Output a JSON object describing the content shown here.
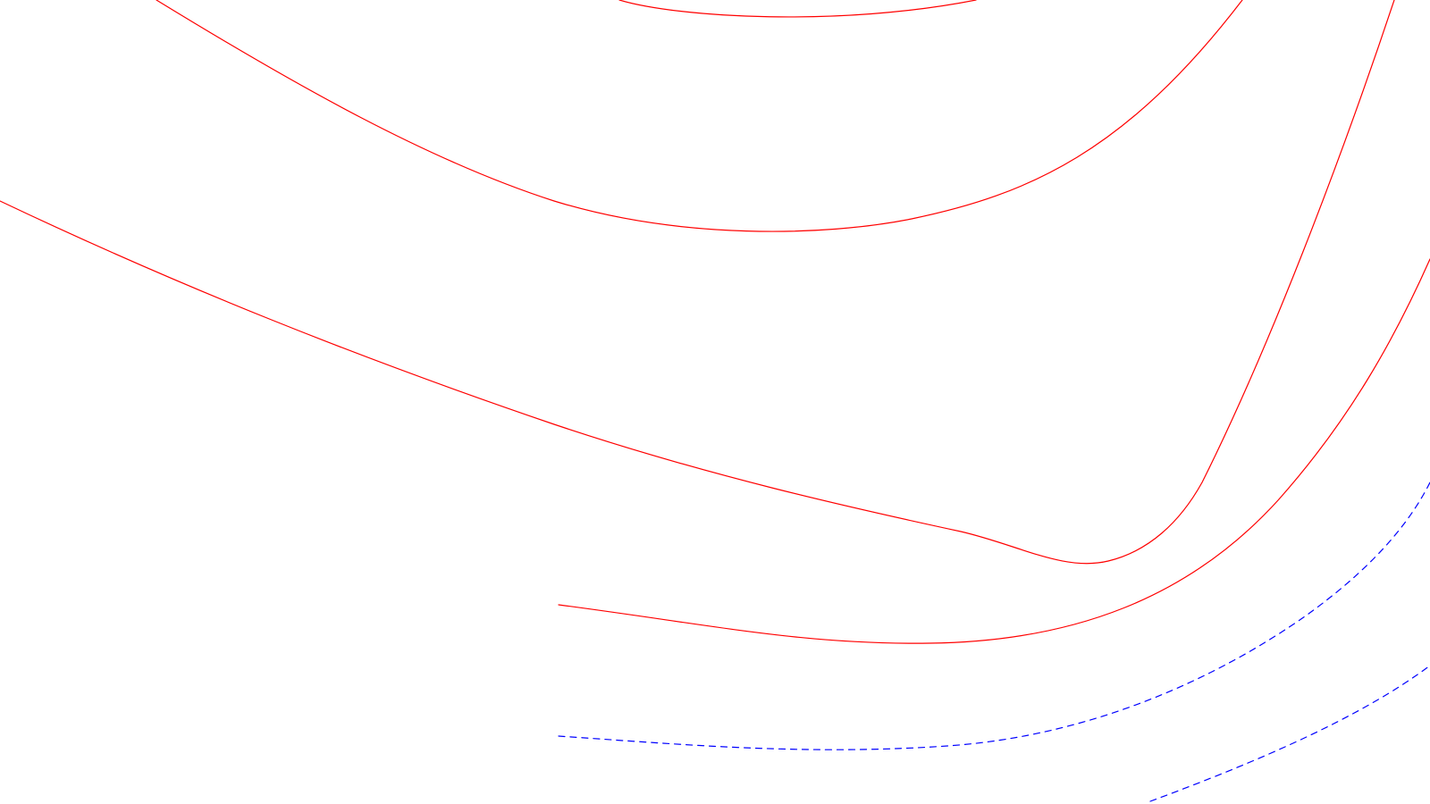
{
  "canvas": {
    "background": "#ffffff"
  },
  "styles": {
    "solid_color": "#ff0000",
    "dashed_color": "#0000ff"
  },
  "curves": [
    {
      "name": "red-arc-top",
      "style": "solid"
    },
    {
      "name": "red-curve-upper",
      "style": "solid"
    },
    {
      "name": "red-curve-middle",
      "style": "solid"
    },
    {
      "name": "red-curve-lower",
      "style": "solid"
    },
    {
      "name": "blue-dashed-curve-left",
      "style": "dashed"
    },
    {
      "name": "blue-dashed-curve-right",
      "style": "dashed"
    }
  ]
}
